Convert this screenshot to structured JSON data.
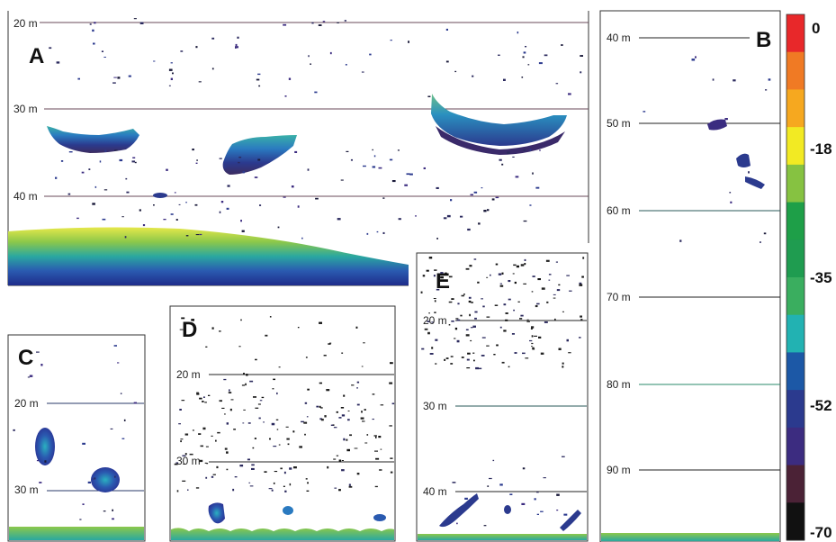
{
  "chart_data": {
    "type": "heatmap",
    "panels": [
      {
        "id": "A",
        "letter": "A",
        "depth_ticks": [
          {
            "label": "20 m",
            "value": 20
          },
          {
            "label": "30 m",
            "value": 30
          },
          {
            "label": "40 m",
            "value": 40
          }
        ]
      },
      {
        "id": "B",
        "letter": "B",
        "depth_ticks": [
          {
            "label": "40 m",
            "value": 40
          },
          {
            "label": "50 m",
            "value": 50
          },
          {
            "label": "60 m",
            "value": 60
          },
          {
            "label": "70 m",
            "value": 70
          },
          {
            "label": "80 m",
            "value": 80
          },
          {
            "label": "90 m",
            "value": 90
          }
        ]
      },
      {
        "id": "C",
        "letter": "C",
        "depth_ticks": [
          {
            "label": "20 m",
            "value": 20
          },
          {
            "label": "30 m",
            "value": 30
          }
        ]
      },
      {
        "id": "D",
        "letter": "D",
        "depth_ticks": [
          {
            "label": "20 m",
            "value": 20
          },
          {
            "label": "30 m",
            "value": 30
          }
        ]
      },
      {
        "id": "E",
        "letter": "E",
        "depth_ticks": [
          {
            "label": "20 m",
            "value": 20
          },
          {
            "label": "30 m",
            "value": 30
          },
          {
            "label": "40 m",
            "value": 40
          }
        ]
      }
    ],
    "colorbar": {
      "tick_labels": [
        "0",
        "-18",
        "-35",
        "-52",
        "-70"
      ],
      "tick_values": [
        0,
        -18,
        -35,
        -52,
        -70
      ],
      "range": [
        -70,
        0
      ],
      "colors": [
        "#e8282a",
        "#f07a24",
        "#f6a81f",
        "#f2ea23",
        "#86c241",
        "#1e9f48",
        "#1f9c50",
        "#3aae5f",
        "#22b2b2",
        "#1c58a6",
        "#2b3a8e",
        "#3c2c80",
        "#4b2236",
        "#111111"
      ]
    }
  }
}
